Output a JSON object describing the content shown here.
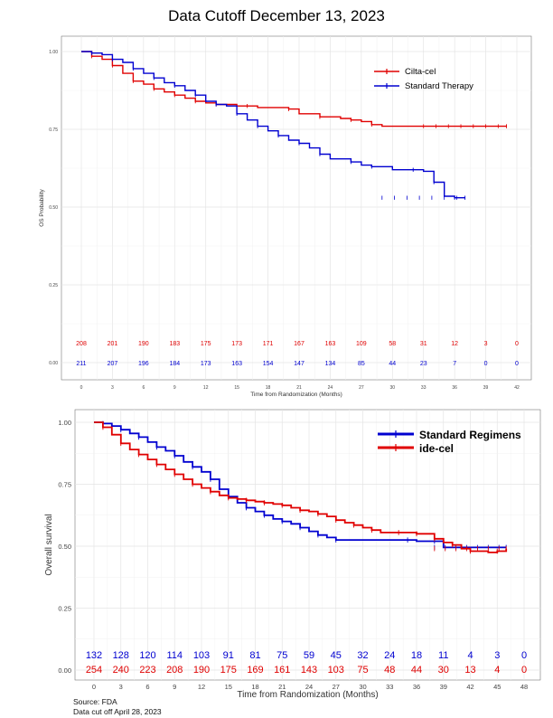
{
  "page": {
    "heading": "Data Cutoff December 13, 2023",
    "source": "Source: FDA",
    "data_cut": "Data cut off April 28, 2023"
  },
  "chart_data": [
    {
      "type": "line",
      "title": "Data Cutoff December 13, 2023",
      "xlabel": "Time from Randomization (Months)",
      "ylabel": "OS Probability",
      "xlim": [
        0,
        42
      ],
      "ylim": [
        0,
        1
      ],
      "xticks": [
        0,
        3,
        6,
        9,
        12,
        15,
        18,
        21,
        24,
        27,
        30,
        33,
        36,
        39,
        42
      ],
      "yticks": [
        0,
        0.25,
        0.5,
        0.75,
        1.0
      ],
      "ytick_labels": [
        "0.00",
        "0.25",
        "0.50",
        "0.75",
        "1.00"
      ],
      "grid": true,
      "legend_position": "top-right",
      "series": [
        {
          "name": "Cilta-cel",
          "color": "#e00000",
          "points": [
            [
              0,
              1.0
            ],
            [
              1,
              0.985
            ],
            [
              2,
              0.975
            ],
            [
              3,
              0.955
            ],
            [
              4,
              0.93
            ],
            [
              5,
              0.905
            ],
            [
              6,
              0.895
            ],
            [
              7,
              0.88
            ],
            [
              8,
              0.87
            ],
            [
              9,
              0.86
            ],
            [
              10,
              0.85
            ],
            [
              11,
              0.84
            ],
            [
              12,
              0.835
            ],
            [
              13,
              0.83
            ],
            [
              15,
              0.825
            ],
            [
              16,
              0.825
            ],
            [
              17,
              0.82
            ],
            [
              20,
              0.815
            ],
            [
              21,
              0.8
            ],
            [
              23,
              0.79
            ],
            [
              25,
              0.785
            ],
            [
              26,
              0.78
            ],
            [
              27,
              0.775
            ],
            [
              28,
              0.765
            ],
            [
              29,
              0.76
            ],
            [
              41,
              0.76
            ]
          ],
          "at_risk": [
            208,
            201,
            190,
            183,
            175,
            173,
            171,
            167,
            163,
            109,
            58,
            31,
            12,
            3,
            0
          ]
        },
        {
          "name": "Standard Therapy",
          "color": "#0000d0",
          "points": [
            [
              0,
              1.0
            ],
            [
              1,
              0.995
            ],
            [
              2,
              0.99
            ],
            [
              3,
              0.975
            ],
            [
              4,
              0.965
            ],
            [
              5,
              0.945
            ],
            [
              6,
              0.93
            ],
            [
              7,
              0.915
            ],
            [
              8,
              0.9
            ],
            [
              9,
              0.89
            ],
            [
              10,
              0.875
            ],
            [
              11,
              0.86
            ],
            [
              12,
              0.84
            ],
            [
              13,
              0.83
            ],
            [
              14,
              0.825
            ],
            [
              15,
              0.8
            ],
            [
              16,
              0.78
            ],
            [
              17,
              0.76
            ],
            [
              18,
              0.745
            ],
            [
              19,
              0.73
            ],
            [
              20,
              0.715
            ],
            [
              21,
              0.705
            ],
            [
              22,
              0.69
            ],
            [
              23,
              0.67
            ],
            [
              24,
              0.655
            ],
            [
              26,
              0.645
            ],
            [
              27,
              0.635
            ],
            [
              28,
              0.63
            ],
            [
              30,
              0.62
            ],
            [
              32,
              0.62
            ],
            [
              33,
              0.615
            ],
            [
              34,
              0.58
            ],
            [
              35,
              0.535
            ],
            [
              36,
              0.53
            ],
            [
              37,
              0.53
            ]
          ],
          "at_risk": [
            211,
            207,
            196,
            184,
            173,
            163,
            154,
            147,
            134,
            85,
            44,
            23,
            7,
            0,
            0
          ]
        }
      ]
    },
    {
      "type": "line",
      "title": "",
      "xlabel": "Time from Randomization (Months)",
      "ylabel": "Overall survival",
      "xlim": [
        0,
        48
      ],
      "ylim": [
        0,
        1
      ],
      "xticks": [
        0,
        3,
        6,
        9,
        12,
        15,
        18,
        21,
        24,
        27,
        30,
        33,
        36,
        39,
        42,
        45,
        48
      ],
      "yticks": [
        0,
        0.25,
        0.5,
        0.75,
        1.0
      ],
      "ytick_labels": [
        "0.00",
        "0.25",
        "0.50",
        "0.75",
        "1.00"
      ],
      "grid": true,
      "legend_position": "top-right",
      "series": [
        {
          "name": "Standard Regimens",
          "color": "#0000d0",
          "points": [
            [
              0,
              1.0
            ],
            [
              1,
              0.995
            ],
            [
              2,
              0.985
            ],
            [
              3,
              0.97
            ],
            [
              4,
              0.955
            ],
            [
              5,
              0.94
            ],
            [
              6,
              0.92
            ],
            [
              7,
              0.9
            ],
            [
              8,
              0.885
            ],
            [
              9,
              0.865
            ],
            [
              10,
              0.84
            ],
            [
              11,
              0.82
            ],
            [
              12,
              0.8
            ],
            [
              13,
              0.77
            ],
            [
              14,
              0.73
            ],
            [
              15,
              0.7
            ],
            [
              16,
              0.675
            ],
            [
              17,
              0.655
            ],
            [
              18,
              0.64
            ],
            [
              19,
              0.625
            ],
            [
              20,
              0.61
            ],
            [
              21,
              0.6
            ],
            [
              22,
              0.59
            ],
            [
              23,
              0.575
            ],
            [
              24,
              0.56
            ],
            [
              25,
              0.545
            ],
            [
              26,
              0.535
            ],
            [
              27,
              0.525
            ],
            [
              28,
              0.525
            ],
            [
              35,
              0.525
            ],
            [
              36,
              0.52
            ],
            [
              38,
              0.52
            ],
            [
              39,
              0.495
            ],
            [
              46,
              0.495
            ]
          ],
          "at_risk": [
            132,
            128,
            120,
            114,
            103,
            91,
            81,
            75,
            59,
            45,
            32,
            24,
            18,
            11,
            4,
            3,
            0
          ]
        },
        {
          "name": "ide-cel",
          "color": "#e00000",
          "points": [
            [
              0,
              1.0
            ],
            [
              1,
              0.98
            ],
            [
              2,
              0.95
            ],
            [
              3,
              0.915
            ],
            [
              4,
              0.89
            ],
            [
              5,
              0.87
            ],
            [
              6,
              0.85
            ],
            [
              7,
              0.83
            ],
            [
              8,
              0.81
            ],
            [
              9,
              0.79
            ],
            [
              10,
              0.77
            ],
            [
              11,
              0.75
            ],
            [
              12,
              0.735
            ],
            [
              13,
              0.72
            ],
            [
              14,
              0.705
            ],
            [
              15,
              0.695
            ],
            [
              16,
              0.69
            ],
            [
              17,
              0.685
            ],
            [
              18,
              0.68
            ],
            [
              19,
              0.675
            ],
            [
              20,
              0.67
            ],
            [
              21,
              0.665
            ],
            [
              22,
              0.655
            ],
            [
              23,
              0.645
            ],
            [
              24,
              0.64
            ],
            [
              25,
              0.63
            ],
            [
              26,
              0.62
            ],
            [
              27,
              0.605
            ],
            [
              28,
              0.595
            ],
            [
              29,
              0.585
            ],
            [
              30,
              0.575
            ],
            [
              31,
              0.565
            ],
            [
              32,
              0.555
            ],
            [
              34,
              0.555
            ],
            [
              35,
              0.555
            ],
            [
              36,
              0.55
            ],
            [
              37,
              0.55
            ],
            [
              38,
              0.53
            ],
            [
              39,
              0.515
            ],
            [
              40,
              0.505
            ],
            [
              41,
              0.49
            ],
            [
              42,
              0.48
            ],
            [
              44,
              0.475
            ],
            [
              45,
              0.48
            ],
            [
              46,
              0.49
            ]
          ],
          "at_risk": [
            254,
            240,
            223,
            208,
            190,
            175,
            169,
            161,
            143,
            103,
            75,
            48,
            44,
            30,
            13,
            4,
            0
          ]
        }
      ]
    }
  ]
}
